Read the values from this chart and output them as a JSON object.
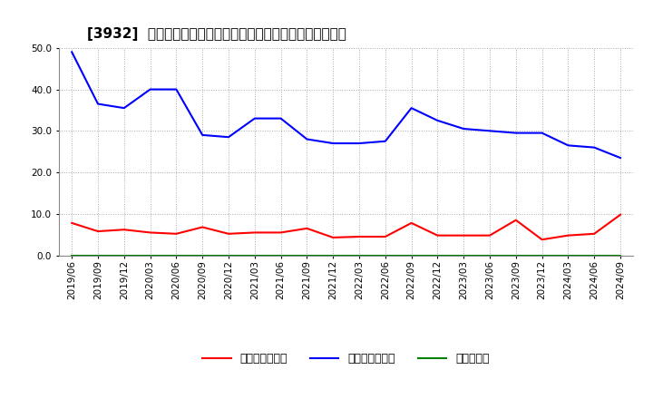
{
  "title": "[3932]  売上債権回転率、買入債務回転率、在庫回転率の推移",
  "x_labels": [
    "2019/06",
    "2019/09",
    "2019/12",
    "2020/03",
    "2020/06",
    "2020/09",
    "2020/12",
    "2021/03",
    "2021/06",
    "2021/09",
    "2021/12",
    "2022/03",
    "2022/06",
    "2022/09",
    "2022/12",
    "2023/03",
    "2023/06",
    "2023/09",
    "2023/12",
    "2024/03",
    "2024/06",
    "2024/09"
  ],
  "accounts_receivable_turnover": [
    7.8,
    5.8,
    6.2,
    5.5,
    5.2,
    6.8,
    5.2,
    5.5,
    5.5,
    6.5,
    4.3,
    4.5,
    4.5,
    7.8,
    4.8,
    4.8,
    4.8,
    8.5,
    3.8,
    4.8,
    5.2,
    9.8
  ],
  "accounts_payable_turnover": [
    49.0,
    36.5,
    35.5,
    40.0,
    40.0,
    29.0,
    28.5,
    33.0,
    33.0,
    28.0,
    27.0,
    27.0,
    27.5,
    35.5,
    32.5,
    30.5,
    30.0,
    29.5,
    29.5,
    26.5,
    26.0,
    23.5
  ],
  "inventory_turnover": [
    0.0,
    0.0,
    0.0,
    0.0,
    0.0,
    0.0,
    0.0,
    0.0,
    0.0,
    0.0,
    0.0,
    0.0,
    0.0,
    0.0,
    0.0,
    0.0,
    0.0,
    0.0,
    0.0,
    0.0,
    0.0,
    0.0
  ],
  "line_colors": {
    "accounts_receivable": "#ff0000",
    "accounts_payable": "#0000ff",
    "inventory": "#008000"
  },
  "legend_labels": [
    "売上債権回転率",
    "買入債務回転率",
    "在庫回転率"
  ],
  "ylim": [
    0.0,
    50.0
  ],
  "yticks": [
    0.0,
    10.0,
    20.0,
    30.0,
    40.0,
    50.0
  ],
  "background_color": "#ffffff",
  "grid_color": "#aaaaaa",
  "title_fontsize": 11,
  "tick_fontsize": 7.5,
  "legend_fontsize": 9
}
